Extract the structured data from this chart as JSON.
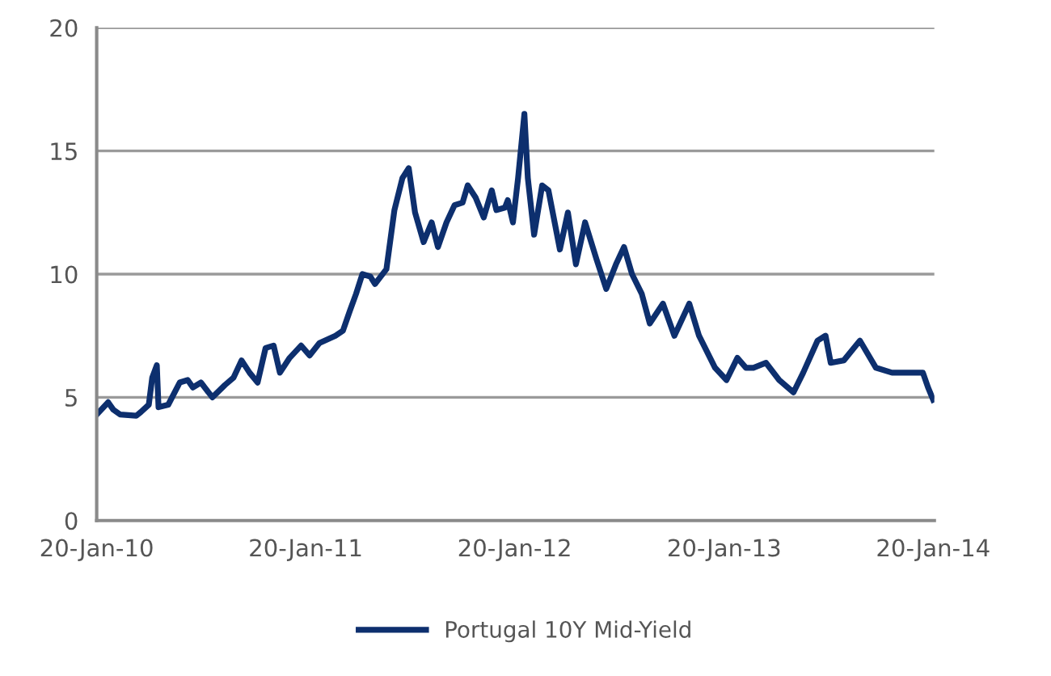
{
  "chart_data": {
    "type": "line",
    "x": [
      "2010-01-20",
      "2010-02-09",
      "2010-02-18",
      "2010-03-02",
      "2010-03-30",
      "2010-04-07",
      "2010-04-21",
      "2010-04-27",
      "2010-05-05",
      "2010-05-08",
      "2010-05-25",
      "2010-06-14",
      "2010-06-28",
      "2010-07-07",
      "2010-07-21",
      "2010-08-10",
      "2010-09-01",
      "2010-09-16",
      "2010-09-30",
      "2010-10-14",
      "2010-10-28",
      "2010-11-11",
      "2010-11-25",
      "2010-12-06",
      "2010-12-23",
      "2011-01-12",
      "2011-01-27",
      "2011-02-13",
      "2011-03-13",
      "2011-03-26",
      "2011-04-07",
      "2011-04-18",
      "2011-04-29",
      "2011-05-13",
      "2011-05-21",
      "2011-06-10",
      "2011-06-24",
      "2011-07-08",
      "2011-07-19",
      "2011-07-30",
      "2011-08-14",
      "2011-08-28",
      "2011-09-08",
      "2011-09-23",
      "2011-10-07",
      "2011-10-21",
      "2011-10-30",
      "2011-11-13",
      "2011-11-27",
      "2011-12-11",
      "2011-12-19",
      "2012-01-03",
      "2012-01-08",
      "2012-01-17",
      "2012-01-26",
      "2012-02-06",
      "2012-02-12",
      "2012-02-23",
      "2012-03-08",
      "2012-03-19",
      "2012-04-08",
      "2012-04-22",
      "2012-05-06",
      "2012-05-22",
      "2012-06-11",
      "2012-06-28",
      "2012-07-15",
      "2012-07-29",
      "2012-08-12",
      "2012-08-29",
      "2012-09-12",
      "2012-10-05",
      "2012-10-25",
      "2012-11-20",
      "2012-12-07",
      "2013-01-04",
      "2013-01-24",
      "2013-02-12",
      "2013-02-27",
      "2013-03-12",
      "2013-04-03",
      "2013-04-26",
      "2013-05-21",
      "2013-06-07",
      "2013-07-02",
      "2013-07-16",
      "2013-07-25",
      "2013-08-17",
      "2013-09-14",
      "2013-10-12",
      "2013-11-09",
      "2013-12-08",
      "2014-01-02",
      "2014-01-11",
      "2014-01-20"
    ],
    "series": [
      {
        "name": "Portugal 10Y Mid-Yield",
        "color": "#0d2f6e",
        "values": [
          4.3,
          4.8,
          4.5,
          4.3,
          4.25,
          4.4,
          4.7,
          5.8,
          6.3,
          4.6,
          4.7,
          5.6,
          5.7,
          5.4,
          5.6,
          5.0,
          5.5,
          5.8,
          6.5,
          6.0,
          5.6,
          7.0,
          7.1,
          6.0,
          6.6,
          7.1,
          6.7,
          7.2,
          7.5,
          7.7,
          8.5,
          9.2,
          10.0,
          9.9,
          9.6,
          10.2,
          12.6,
          13.9,
          14.3,
          12.5,
          11.3,
          12.1,
          11.1,
          12.1,
          12.8,
          12.9,
          13.6,
          13.1,
          12.3,
          13.4,
          12.6,
          12.7,
          13.0,
          12.1,
          13.9,
          16.5,
          13.9,
          11.6,
          13.6,
          13.4,
          11.0,
          12.5,
          10.4,
          12.1,
          10.6,
          9.4,
          10.4,
          11.1,
          10.0,
          9.2,
          8.0,
          8.8,
          7.5,
          8.8,
          7.5,
          6.2,
          5.7,
          6.6,
          6.2,
          6.2,
          6.4,
          5.7,
          5.2,
          6.0,
          7.3,
          7.5,
          6.4,
          6.5,
          7.3,
          6.2,
          6.0,
          6.0,
          6.0,
          5.4,
          4.9
        ]
      }
    ],
    "xlim": [
      "2010-01-20",
      "2014-01-22"
    ],
    "xticks": [
      {
        "value": "2010-01-20",
        "label": "20-Jan-10"
      },
      {
        "value": "2011-01-20",
        "label": "20-Jan-11"
      },
      {
        "value": "2012-01-20",
        "label": "20-Jan-12"
      },
      {
        "value": "2013-01-20",
        "label": "20-Jan-13"
      },
      {
        "value": "2014-01-20",
        "label": "20-Jan-14"
      }
    ],
    "ylim": [
      0,
      20
    ],
    "yticks": [
      0,
      5,
      10,
      15,
      20
    ],
    "grid": "y",
    "legend": "bottom",
    "marker": "none",
    "line_style": "solid"
  }
}
